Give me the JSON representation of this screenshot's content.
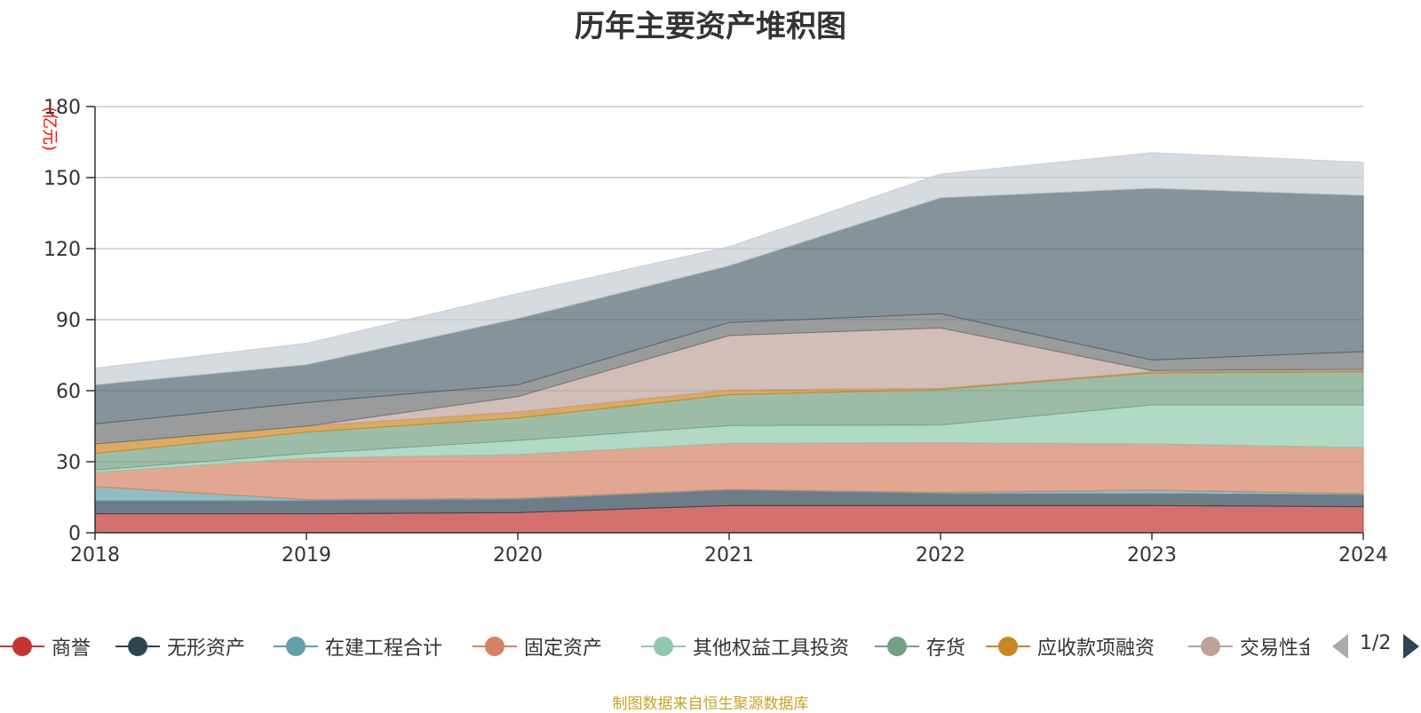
{
  "chart_data": {
    "type": "area",
    "stacked": true,
    "title": "历年主要资产堆积图",
    "ylabel": "(亿元)",
    "categories": [
      "2018",
      "2019",
      "2020",
      "2021",
      "2022",
      "2023",
      "2024"
    ],
    "ylim": [
      0,
      180
    ],
    "yticks": [
      0,
      30,
      60,
      90,
      120,
      150,
      180
    ],
    "grid": true,
    "series": [
      {
        "name": "商誉",
        "color": "#c23531",
        "values": [
          8,
          8,
          8.5,
          11.5,
          11.5,
          11.5,
          11
        ]
      },
      {
        "name": "无形资产",
        "color": "#2f4554",
        "values": [
          5.5,
          5.5,
          5.5,
          6.5,
          5,
          5,
          5
        ]
      },
      {
        "name": "在建工程合计",
        "color": "#61a0a8",
        "values": [
          6,
          0.5,
          0.5,
          0.3,
          0.5,
          1.5,
          0.5
        ]
      },
      {
        "name": "固定资产",
        "color": "#d48265",
        "values": [
          6,
          17.5,
          18.5,
          19.5,
          21,
          19.5,
          19.5
        ]
      },
      {
        "name": "其他权益工具投资",
        "color": "#91c7ae",
        "values": [
          1,
          2,
          6,
          7.5,
          7.5,
          16.5,
          18
        ]
      },
      {
        "name": "存货",
        "color": "#749f83",
        "values": [
          7,
          9,
          9.5,
          13,
          15,
          13.5,
          14
        ]
      },
      {
        "name": "应收款项融资",
        "color": "#ca8622",
        "values": [
          4,
          2.5,
          2.5,
          2,
          0.5,
          0.5,
          0.5
        ]
      },
      {
        "name": "交易性金融资产",
        "color": "#bda29a",
        "values": [
          0,
          0,
          6.5,
          23,
          25.5,
          0.5,
          0.5
        ]
      },
      {
        "name": "",
        "color": "#6e7074",
        "values": [
          8.5,
          10,
          5,
          5.5,
          6,
          4.5,
          7.5
        ]
      },
      {
        "name": "",
        "color": "#546570",
        "values": [
          16.5,
          16,
          28,
          24,
          49,
          72.5,
          66
        ]
      },
      {
        "name": "",
        "color": "#c4ccd3",
        "values": [
          7,
          9,
          10.5,
          8,
          10,
          15,
          14
        ]
      }
    ]
  },
  "legend": {
    "page": "1/2"
  },
  "source_note": "制图数据来自恒生聚源数据库"
}
